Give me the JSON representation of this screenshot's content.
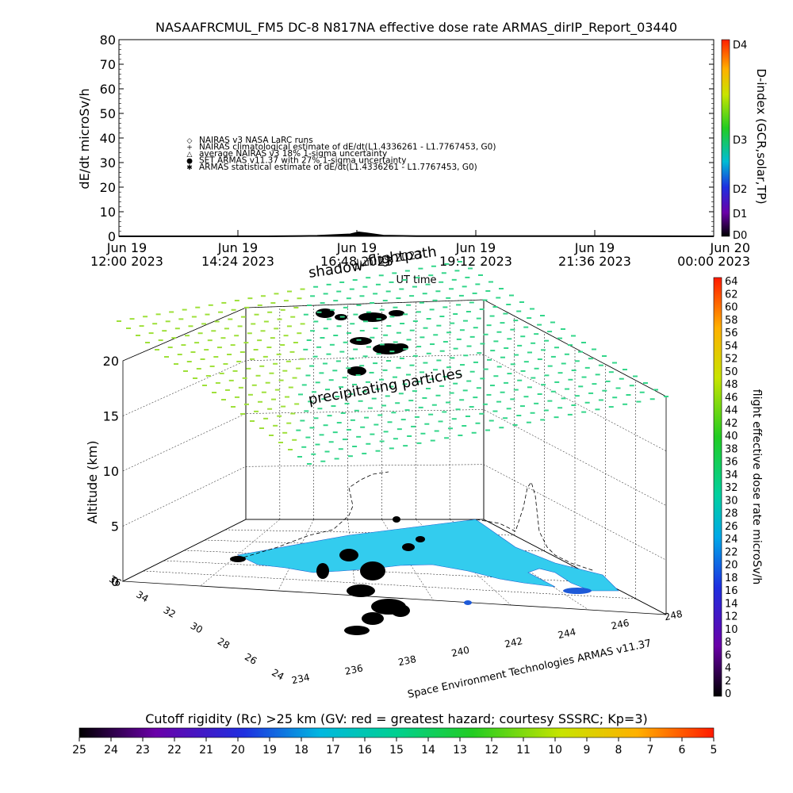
{
  "chart_data": [
    {
      "type": "line",
      "title": "NASAAFRCMUL_FM5 DC-8    N817NA effective dose rate ARMAS_dirIP_Report_03440",
      "ylabel": "dE/dt microSv/h",
      "xlabel": "UT time",
      "ylim": [
        0,
        80
      ],
      "y_ticks": [
        "0",
        "10",
        "20",
        "30",
        "40",
        "50",
        "60",
        "70",
        "80"
      ],
      "x_ticks": [
        {
          "line1": "Jun 19",
          "line2": "12:00 2023"
        },
        {
          "line1": "Jun 19",
          "line2": "14:24 2023"
        },
        {
          "line1": "Jun 19",
          "line2": "16:48 2023"
        },
        {
          "line1": "Jun 19",
          "line2": "19:12 2023"
        },
        {
          "line1": "Jun 19",
          "line2": "21:36 2023"
        },
        {
          "line1": "Jun 20",
          "line2": "00:00 2023"
        }
      ],
      "legend": [
        {
          "symbol": "◇",
          "label": "NAIRAS v3 NASA LaRC runs"
        },
        {
          "symbol": "+",
          "label": "NAIRAS climatological estimate of dE/dt(L1.4336261 - L1.7767453, G0)"
        },
        {
          "symbol": "△",
          "label": "average NAIRAS v3 18% 1-sigma uncertainty"
        },
        {
          "symbol": "●",
          "label": "SET ARMAS v11.37 with 27% 1-sigma uncertainty"
        },
        {
          "symbol": "✱",
          "label": "ARMAS statistical estimate of dE/dt(L1.4336261 - L1.7767453, G0)"
        }
      ],
      "series": [
        {
          "x": [
            "12:00",
            "15:00",
            "16:00",
            "16:40",
            "16:50",
            "17:00",
            "17:20",
            "18:00",
            "21:00",
            "24:00"
          ],
          "values": [
            0,
            0,
            0.2,
            0.8,
            1.6,
            1.2,
            0.3,
            0.1,
            0.1,
            0
          ]
        }
      ],
      "dindex_colorbar": {
        "label": "D-index (GCR,solar,TP)",
        "ticks": [
          "D4",
          "D3",
          "D2",
          "D1",
          "D0"
        ]
      }
    },
    {
      "type": "scatter",
      "zlabel": "Altitude (km)",
      "z_ticks": [
        "0",
        "5",
        "10",
        "15",
        "20"
      ],
      "lat_ticks": [
        "36",
        "34",
        "32",
        "30",
        "28",
        "26",
        "24"
      ],
      "lon_ticks": [
        "234",
        "236",
        "238",
        "240",
        "242",
        "244",
        "246",
        "248"
      ],
      "annotations": [
        "shadow",
        "flightpath",
        "precipitating particles"
      ],
      "date_overlay": "Jun 19 2023",
      "credit": "Space Environment Technologies ARMAS v11.37",
      "dose_colorbar": {
        "label": "flight effective dose rate microSv/h",
        "ticks": [
          "0",
          "2",
          "4",
          "6",
          "8",
          "10",
          "12",
          "14",
          "16",
          "18",
          "20",
          "22",
          "24",
          "26",
          "28",
          "30",
          "32",
          "34",
          "36",
          "38",
          "40",
          "42",
          "44",
          "46",
          "48",
          "50",
          "52",
          "54",
          "56",
          "58",
          "60",
          "62",
          "64"
        ]
      },
      "cutoff_colorbar": {
        "title": "Cutoff rigidity (Rc) >25 km (GV: red = greatest hazard; courtesy SSSRC; Kp=3)",
        "ticks": [
          "25",
          "24",
          "23",
          "22",
          "21",
          "20",
          "19",
          "18",
          "17",
          "16",
          "15",
          "14",
          "13",
          "12",
          "11",
          "10",
          "9",
          "8",
          "7",
          "6",
          "5"
        ]
      }
    }
  ]
}
